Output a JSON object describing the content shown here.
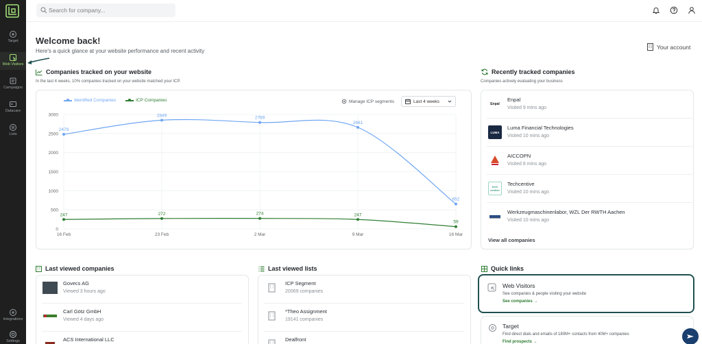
{
  "sidebar": {
    "items": [
      {
        "label": "Target",
        "icon": "target-icon"
      },
      {
        "label": "Web Visitors",
        "icon": "web-visitors-icon",
        "active": true
      },
      {
        "label": "Campaigns",
        "icon": "campaigns-icon"
      },
      {
        "label": "Datacare",
        "icon": "datacare-icon"
      },
      {
        "label": "Lists",
        "icon": "lists-icon"
      }
    ],
    "bottom": [
      {
        "label": "Integrations",
        "icon": "integrations-icon"
      },
      {
        "label": "Settings",
        "icon": "settings-icon"
      }
    ],
    "accent": "#a3e07a"
  },
  "topbar": {
    "search_placeholder": "Search for company..."
  },
  "header": {
    "title": "Welcome back!",
    "subtitle": "Here's a quick glance at your website performance and recent activity",
    "account_label": "Your account"
  },
  "tracked": {
    "title": "Companies tracked on your website",
    "subtitle": "In the last 4 weeks, 10% companies tracked on your website matched your ICP.",
    "manage_label": "Manage ICP segments",
    "period_label": "Last 4 weeks"
  },
  "chart_data": {
    "type": "line",
    "x": [
      "16 Feb",
      "23 Feb",
      "2 Mar",
      "9 Mar",
      "16 Mar"
    ],
    "ylim": [
      0,
      3000
    ],
    "yticks": [
      0,
      500,
      1000,
      1500,
      2000,
      2500,
      3000
    ],
    "grid": true,
    "legend": "top-left",
    "series": [
      {
        "name": "Identified Companies",
        "color": "#6ea6f2",
        "values": [
          2479,
          2849,
          2789,
          2661,
          652
        ]
      },
      {
        "name": "ICP Companies",
        "color": "#2e7d32",
        "values": [
          247,
          272,
          274,
          247,
          59
        ]
      }
    ]
  },
  "recent": {
    "title": "Recently tracked companies",
    "subtitle": "Companies actively evaluating your business",
    "items": [
      {
        "name": "Enpal",
        "time": "Visited 9 mins ago",
        "logo_text": "Enpal"
      },
      {
        "name": "Luma Financial Technologies",
        "time": "Visited 10 mins ago",
        "logo_text": "LUMA"
      },
      {
        "name": "AICCOPN",
        "time": "Visited 8 mins ago",
        "logo_text": ""
      },
      {
        "name": "Techcentive",
        "time": "Visited 10 mins ago",
        "logo_text": "tech centive"
      },
      {
        "name": "Werkzeugmaschinenlabor, WZL Der RWTH Aachen",
        "time": "Visited 10 mins ago",
        "logo_text": ""
      }
    ],
    "view_all": "View all companies"
  },
  "last_companies": {
    "title": "Last viewed companies",
    "items": [
      {
        "name": "Govecs AG",
        "meta": "Viewed 3 hours ago"
      },
      {
        "name": "Carl Götz GmbH",
        "meta": "Viewed 4 days ago"
      },
      {
        "name": "ACS International LLC",
        "meta": ""
      }
    ]
  },
  "last_lists": {
    "title": "Last viewed lists",
    "items": [
      {
        "name": "ICP Segment",
        "meta": "20069 companies"
      },
      {
        "name": "*Theo Assignment",
        "meta": "19141 companies"
      },
      {
        "name": "Dealfront",
        "meta": ""
      }
    ]
  },
  "quick_links": {
    "title": "Quick links",
    "items": [
      {
        "title": "Web Visitors",
        "desc": "See companies & people visiting your website",
        "link": "See companies →"
      },
      {
        "title": "Target",
        "desc": "Find direct dials and emails of 180M+ contacts from 40M+ companies",
        "link": "Find prospects →"
      }
    ]
  }
}
